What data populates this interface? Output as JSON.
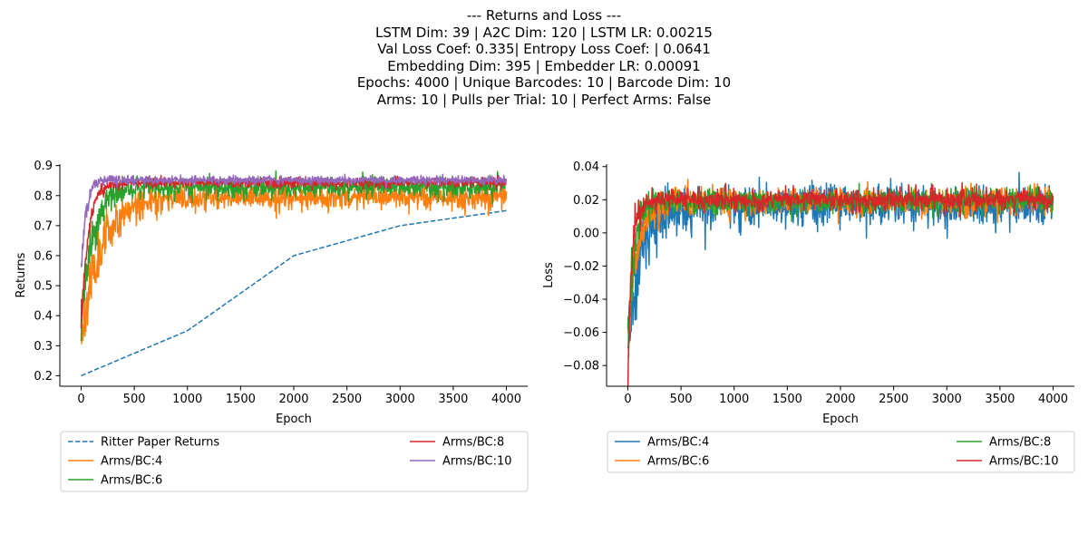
{
  "figure": {
    "title_lines": [
      "--- Returns and Loss ---",
      "LSTM Dim: 39 | A2C Dim: 120 | LSTM LR: 0.00215",
      "Val Loss Coef: 0.335| Entropy Loss Coef: | 0.0641",
      "Embedding Dim: 395 | Embedder LR: 0.00091",
      "Epochs: 4000 | Unique Barcodes: 10 | Barcode Dim: 10",
      "Arms: 10 | Pulls per Trial: 10 | Perfect Arms: False"
    ]
  },
  "colors": {
    "blue": "#1f77b4",
    "orange": "#ff7f0e",
    "green": "#2ca02c",
    "red": "#d62728",
    "purple": "#9467bd"
  },
  "chart_data": [
    {
      "type": "line",
      "xlabel": "Epoch",
      "ylabel": "Returns",
      "xlim": [
        -200,
        4200
      ],
      "ylim": [
        0.165,
        0.905
      ],
      "xticks": [
        0,
        500,
        1000,
        1500,
        2000,
        2500,
        3000,
        3500,
        4000
      ],
      "yticks": [
        0.2,
        0.3,
        0.4,
        0.5,
        0.6,
        0.7,
        0.8,
        0.9
      ],
      "ytick_labels": [
        "0.2",
        "0.3",
        "0.4",
        "0.5",
        "0.6",
        "0.7",
        "0.8",
        "0.9"
      ],
      "legend_placement": "below",
      "legend_columns": 2,
      "series": [
        {
          "name": "Ritter Paper Returns",
          "color": "#1f77b4",
          "style": "dashed",
          "points": [
            [
              0,
              0.2
            ],
            [
              1000,
              0.35
            ],
            [
              2000,
              0.6
            ],
            [
              3000,
              0.7
            ],
            [
              4000,
              0.75
            ]
          ]
        },
        {
          "name": "Arms/BC:4",
          "color": "#ff7f0e",
          "style": "noisy",
          "start": 0.32,
          "plateau": 0.795,
          "tau": 180,
          "noise": 0.02,
          "seed": 11
        },
        {
          "name": "Arms/BC:6",
          "color": "#2ca02c",
          "style": "noisy",
          "start": 0.36,
          "plateau": 0.828,
          "tau": 110,
          "noise": 0.016,
          "seed": 23
        },
        {
          "name": "Arms/BC:8",
          "color": "#d62728",
          "style": "noisy",
          "start": 0.38,
          "plateau": 0.843,
          "tau": 70,
          "noise": 0.008,
          "seed": 37
        },
        {
          "name": "Arms/BC:10",
          "color": "#9467bd",
          "style": "noisy",
          "start": 0.55,
          "plateau": 0.852,
          "tau": 45,
          "noise": 0.007,
          "seed": 51
        }
      ]
    },
    {
      "type": "line",
      "xlabel": "Epoch",
      "ylabel": "Loss",
      "xlim": [
        -200,
        4200
      ],
      "ylim": [
        -0.0925,
        0.0415
      ],
      "xticks": [
        0,
        500,
        1000,
        1500,
        2000,
        2500,
        3000,
        3500,
        4000
      ],
      "yticks": [
        -0.08,
        -0.06,
        -0.04,
        -0.02,
        0.0,
        0.02,
        0.04
      ],
      "ytick_labels": [
        "−0.08",
        "−0.06",
        "−0.04",
        "−0.02",
        "0.00",
        "0.02",
        "0.04"
      ],
      "legend_placement": "below",
      "legend_columns": 2,
      "series": [
        {
          "name": "Arms/BC:4",
          "color": "#1f77b4",
          "style": "noisy",
          "start": -0.065,
          "plateau": 0.016,
          "tau": 120,
          "noise": 0.006,
          "seed": 71
        },
        {
          "name": "Arms/BC:6",
          "color": "#ff7f0e",
          "style": "noisy",
          "start": -0.06,
          "plateau": 0.019,
          "tau": 90,
          "noise": 0.004,
          "seed": 83
        },
        {
          "name": "Arms/BC:8",
          "color": "#2ca02c",
          "style": "noisy",
          "start": -0.07,
          "plateau": 0.019,
          "tau": 60,
          "noise": 0.0035,
          "seed": 97
        },
        {
          "name": "Arms/BC:10",
          "color": "#d62728",
          "style": "noisy",
          "start": -0.087,
          "plateau": 0.02,
          "tau": 40,
          "noise": 0.003,
          "seed": 101
        }
      ]
    }
  ]
}
